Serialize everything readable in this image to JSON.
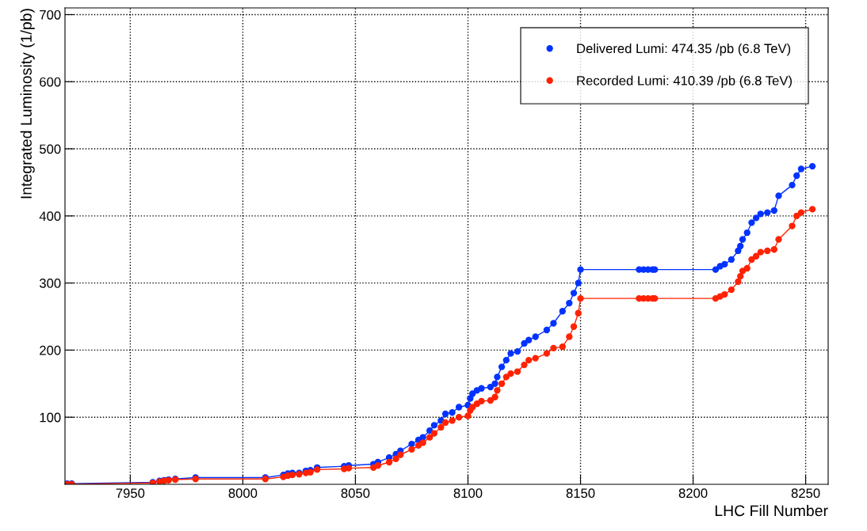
{
  "chart_data": {
    "type": "line",
    "xlabel": "LHC Fill Number",
    "ylabel": "Integrated Luminosity (1/pb)",
    "xlim": [
      7921,
      8260
    ],
    "ylim": [
      0,
      710
    ],
    "xticks": [
      7950,
      8000,
      8050,
      8100,
      8150,
      8200,
      8250
    ],
    "yticks": [
      100,
      200,
      300,
      400,
      500,
      600,
      700
    ],
    "grid": true,
    "legend": "top right",
    "marker": "circle",
    "line_style": "solid",
    "x": [
      7922,
      7924,
      7960,
      7963,
      7965,
      7967,
      7970,
      7979,
      8010,
      8018,
      8020,
      8022,
      8025,
      8028,
      8030,
      8033,
      8045,
      8047,
      8058,
      8060,
      8065,
      8068,
      8070,
      8075,
      8078,
      8080,
      8083,
      8085,
      8088,
      8090,
      8093,
      8096,
      8100,
      8101,
      8102,
      8104,
      8106,
      8110,
      8112,
      8113,
      8115,
      8117,
      8119,
      8122,
      8125,
      8127,
      8130,
      8135,
      8138,
      8142,
      8145,
      8147,
      8149,
      8150,
      8176,
      8178,
      8180,
      8182,
      8183,
      8210,
      8212,
      8214,
      8217,
      8220,
      8221,
      8222,
      8224,
      8226,
      8228,
      8230,
      8233,
      8236,
      8238,
      8244,
      8246,
      8248,
      8253
    ],
    "series": [
      {
        "name": "Delivered Lumi: 474.35 /pb (6.8 TeV)",
        "color": "#0033ff",
        "values": [
          1,
          1,
          3,
          5,
          6,
          7,
          8,
          10,
          10,
          14,
          16,
          17,
          17,
          20,
          21,
          25,
          27,
          28,
          30,
          33,
          40,
          45,
          50,
          60,
          66,
          70,
          80,
          88,
          95,
          105,
          107,
          115,
          118,
          128,
          135,
          140,
          143,
          145,
          150,
          160,
          175,
          185,
          195,
          198,
          210,
          215,
          220,
          230,
          240,
          258,
          270,
          285,
          300,
          320,
          320,
          320,
          320,
          320,
          320,
          320,
          325,
          328,
          335,
          348,
          355,
          365,
          375,
          390,
          397,
          403,
          405,
          408,
          430,
          446,
          460,
          470,
          474
        ]
      },
      {
        "name": "Recorded Lumi: 410.39 /pb (6.8 TeV)",
        "color": "#ff2200",
        "values": [
          0,
          0,
          2,
          4,
          5,
          6,
          7,
          8,
          8,
          11,
          13,
          14,
          15,
          17,
          18,
          22,
          23,
          24,
          25,
          28,
          33,
          38,
          44,
          52,
          58,
          62,
          70,
          76,
          85,
          92,
          95,
          100,
          102,
          110,
          115,
          120,
          124,
          125,
          130,
          140,
          150,
          160,
          165,
          168,
          178,
          185,
          188,
          195,
          203,
          205,
          220,
          235,
          255,
          277,
          277,
          277,
          277,
          277,
          277,
          277,
          280,
          283,
          290,
          302,
          310,
          318,
          322,
          335,
          340,
          346,
          348,
          350,
          365,
          385,
          400,
          405,
          410
        ]
      }
    ]
  }
}
